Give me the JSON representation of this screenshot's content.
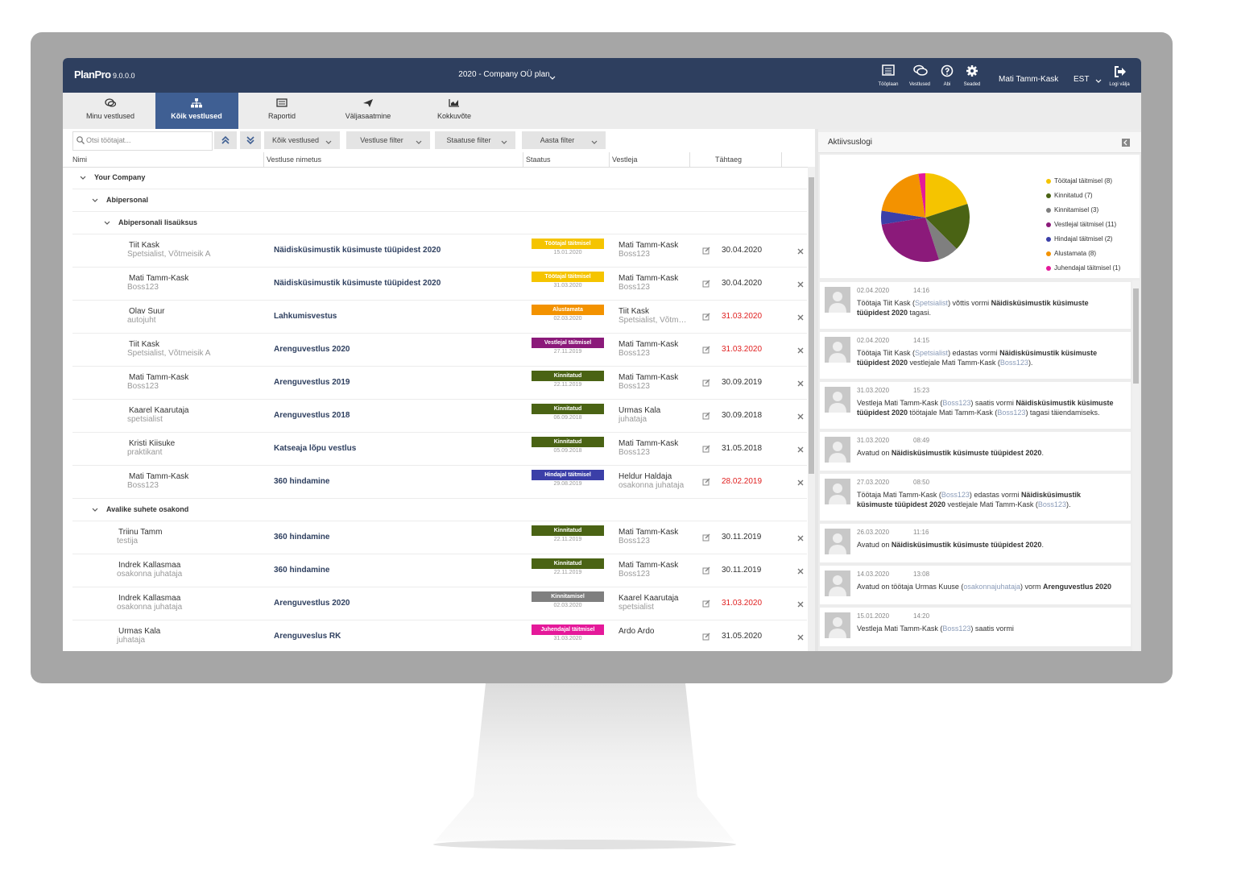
{
  "header": {
    "logo": "PlanPro",
    "version": "9.0.0.0",
    "plan": "2020 - Company OÜ plan",
    "nav": [
      "Tööplaan",
      "Vestlused",
      "Abi",
      "Seaded"
    ],
    "user": "Mati Tamm-Kask",
    "language": "EST",
    "logout": "Logi välja"
  },
  "tabs": [
    "Minu vestlused",
    "Kõik vestlused",
    "Raportid",
    "Väljasaatmine",
    "Kokkuvõte"
  ],
  "active_tab": 1,
  "toolbar": {
    "search_placeholder": "Otsi töötajat...",
    "filters": [
      "Kõik vestlused",
      "Vestluse filter",
      "Staatuse filter",
      "Aasta filter"
    ]
  },
  "columns": [
    "Nimi",
    "Vestluse nimetus",
    "Staatus",
    "Vestleja",
    "Tähtaeg"
  ],
  "tree": [
    {
      "label": "Your Company",
      "children": [
        {
          "label": "Abipersonal",
          "children": [
            {
              "label": "Abipersonali lisaüksus",
              "rows": [
                {
                  "name": "Tiit Kask",
                  "role": "Spetsialist, Võtmeisik A",
                  "title": "Näidisküsimustik küsimuste tüüpidest 2020",
                  "status": "Töötajal täitmisel",
                  "status_date": "15.01.2020",
                  "color": "#f5c400",
                  "reviewer": "Mati Tamm-Kask",
                  "reviewer_role": "Boss123",
                  "deadline": "30.04.2020",
                  "overdue": false
                },
                {
                  "name": "Mati Tamm-Kask",
                  "role": "Boss123",
                  "title": "Näidisküsimustik küsimuste tüüpidest 2020",
                  "status": "Töötajal täitmisel",
                  "status_date": "31.03.2020",
                  "color": "#f5c400",
                  "reviewer": "Mati Tamm-Kask",
                  "reviewer_role": "Boss123",
                  "deadline": "30.04.2020",
                  "overdue": false
                },
                {
                  "name": "Olav Suur",
                  "role": "autojuht",
                  "title": "Lahkumisvestus",
                  "status": "Alustamata",
                  "status_date": "02.03.2020",
                  "color": "#f39200",
                  "reviewer": "Tiit Kask",
                  "reviewer_role": "Spetsialist, Võtmeisik A",
                  "deadline": "31.03.2020",
                  "overdue": true
                },
                {
                  "name": "Tiit Kask",
                  "role": "Spetsialist, Võtmeisik A",
                  "title": "Arenguvestlus 2020",
                  "status": "Vestlejal täitmisel",
                  "status_date": "27.11.2019",
                  "color": "#8b1a7a",
                  "reviewer": "Mati Tamm-Kask",
                  "reviewer_role": "Boss123",
                  "deadline": "31.03.2020",
                  "overdue": true
                },
                {
                  "name": "Mati Tamm-Kask",
                  "role": "Boss123",
                  "title": "Arenguvestlus 2019",
                  "status": "Kinnitatud",
                  "status_date": "22.11.2019",
                  "color": "#4a6314",
                  "reviewer": "Mati Tamm-Kask",
                  "reviewer_role": "Boss123",
                  "deadline": "30.09.2019",
                  "overdue": false
                },
                {
                  "name": "Kaarel Kaarutaja",
                  "role": "spetsialist",
                  "title": "Arenguvestlus 2018",
                  "status": "Kinnitatud",
                  "status_date": "06.09.2018",
                  "color": "#4a6314",
                  "reviewer": "Urmas Kala",
                  "reviewer_role": "juhataja",
                  "deadline": "30.09.2018",
                  "overdue": false
                },
                {
                  "name": "Kristi Kiisuke",
                  "role": "praktikant",
                  "title": "Katseaja lõpu vestlus",
                  "status": "Kinnitatud",
                  "status_date": "05.09.2018",
                  "color": "#4a6314",
                  "reviewer": "Mati Tamm-Kask",
                  "reviewer_role": "Boss123",
                  "deadline": "31.05.2018",
                  "overdue": false
                },
                {
                  "name": "Mati Tamm-Kask",
                  "role": "Boss123",
                  "title": "360 hindamine",
                  "status": "Hindajal täitmisel",
                  "status_date": "29.08.2019",
                  "color": "#3b3fa8",
                  "reviewer": "Heldur Haldaja",
                  "reviewer_role": "osakonna juhataja",
                  "deadline": "28.02.2019",
                  "overdue": true
                }
              ]
            }
          ]
        },
        {
          "label": "Avalike suhete osakond",
          "rows": [
            {
              "name": "Triinu Tamm",
              "role": "testija",
              "title": "360 hindamine",
              "status": "Kinnitatud",
              "status_date": "22.11.2019",
              "color": "#4a6314",
              "reviewer": "Mati Tamm-Kask",
              "reviewer_role": "Boss123",
              "deadline": "30.11.2019",
              "overdue": false
            },
            {
              "name": "Indrek Kallasmaa",
              "role": "osakonna juhataja",
              "title": "360 hindamine",
              "status": "Kinnitatud",
              "status_date": "22.11.2019",
              "color": "#4a6314",
              "reviewer": "Mati Tamm-Kask",
              "reviewer_role": "Boss123",
              "deadline": "30.11.2019",
              "overdue": false
            },
            {
              "name": "Indrek Kallasmaa",
              "role": "osakonna juhataja",
              "title": "Arenguvestlus 2020",
              "status": "Kinnitamisel",
              "status_date": "02.03.2020",
              "color": "#7f7f7f",
              "reviewer": "Kaarel Kaarutaja",
              "reviewer_role": "spetsialist",
              "deadline": "31.03.2020",
              "overdue": true
            },
            {
              "name": "Urmas Kala",
              "role": "juhataja",
              "title": "Arenguveslus RK",
              "status": "Juhendajal täitmisel",
              "status_date": "31.03.2020",
              "color": "#e5199a",
              "reviewer": "Ardo Ardo",
              "deadline": "31.05.2020",
              "overdue": false
            }
          ]
        }
      ]
    }
  ],
  "activity_log": {
    "title": "Aktiivsuslogi",
    "entries": [
      {
        "date": "02.04.2020",
        "time": "14:16",
        "parts": [
          {
            "text": "Töötaja Tiit Kask ("
          },
          {
            "text": "Spetsialist",
            "style": "muted"
          },
          {
            "text": ") võttis vormi "
          },
          {
            "text": "Näidisküsimustik küsimuste tüüpidest 2020",
            "style": "bold"
          },
          {
            "text": " tagasi."
          }
        ]
      },
      {
        "date": "02.04.2020",
        "time": "14:15",
        "parts": [
          {
            "text": "Töötaja Tiit Kask ("
          },
          {
            "text": "Spetsialist",
            "style": "muted"
          },
          {
            "text": ") edastas vormi "
          },
          {
            "text": "Näidisküsimustik küsimuste tüüpidest 2020",
            "style": "bold"
          },
          {
            "text": " vestlejale Mati Tamm-Kask ("
          },
          {
            "text": "Boss123",
            "style": "muted"
          },
          {
            "text": ")."
          }
        ]
      },
      {
        "date": "31.03.2020",
        "time": "15:23",
        "parts": [
          {
            "text": "Vestleja Mati Tamm-Kask ("
          },
          {
            "text": "Boss123",
            "style": "muted"
          },
          {
            "text": ") saatis vormi "
          },
          {
            "text": "Näidisküsimustik küsimuste tüüpidest 2020",
            "style": "bold"
          },
          {
            "text": " töötajale Mati Tamm-Kask ("
          },
          {
            "text": "Boss123",
            "style": "muted"
          },
          {
            "text": ") tagasi täiendamiseks."
          }
        ]
      },
      {
        "date": "31.03.2020",
        "time": "08:49",
        "parts": [
          {
            "text": "Avatud on "
          },
          {
            "text": "Näidisküsimustik küsimuste tüüpidest 2020",
            "style": "bold"
          },
          {
            "text": "."
          }
        ]
      },
      {
        "date": "27.03.2020",
        "time": "08:50",
        "parts": [
          {
            "text": "Töötaja Mati Tamm-Kask ("
          },
          {
            "text": "Boss123",
            "style": "muted"
          },
          {
            "text": ") edastas vormi "
          },
          {
            "text": "Näidisküsimustik küsimuste tüüpidest 2020",
            "style": "bold"
          },
          {
            "text": " vestlejale Mati Tamm-Kask ("
          },
          {
            "text": "Boss123",
            "style": "muted"
          },
          {
            "text": ")."
          }
        ]
      },
      {
        "date": "26.03.2020",
        "time": "11:16",
        "parts": [
          {
            "text": "Avatud on "
          },
          {
            "text": "Näidisküsimustik küsimuste tüüpidest 2020",
            "style": "bold"
          },
          {
            "text": "."
          }
        ]
      },
      {
        "date": "14.03.2020",
        "time": "13:08",
        "parts": [
          {
            "text": "Avatud on töötaja Urmas Kuuse ("
          },
          {
            "text": "osakonnajuhataja",
            "style": "muted"
          },
          {
            "text": ") vorm "
          },
          {
            "text": "Arenguvestlus 2020",
            "style": "bold"
          }
        ]
      },
      {
        "date": "15.01.2020",
        "time": "14:20",
        "parts": [
          {
            "text": "Vestleja Mati Tamm-Kask ("
          },
          {
            "text": "Boss123",
            "style": "muted"
          },
          {
            "text": ") saatis vormi"
          }
        ]
      }
    ]
  },
  "chart_data": {
    "type": "pie",
    "categories": [
      "Töötajal täitmisel (8)",
      "Kinnitatud (7)",
      "Kinnitamisel (3)",
      "Vestlejal täitmisel (11)",
      "Hindajal täitmisel (2)",
      "Alustamata (8)",
      "Juhendajal täitmisel (1)"
    ],
    "values": [
      8,
      7,
      3,
      11,
      2,
      8,
      1
    ],
    "colors": [
      "#f5c400",
      "#4a6314",
      "#7f7f7f",
      "#8b1a7a",
      "#3b3fa8",
      "#f39200",
      "#e5199a"
    ]
  }
}
